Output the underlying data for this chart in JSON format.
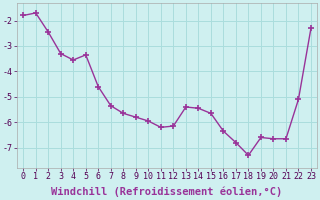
{
  "x": [
    0,
    1,
    2,
    3,
    4,
    5,
    6,
    7,
    8,
    9,
    10,
    11,
    12,
    13,
    14,
    15,
    16,
    17,
    18,
    19,
    20,
    21,
    22,
    23
  ],
  "y": [
    -1.8,
    -1.7,
    -2.45,
    -3.3,
    -3.55,
    -3.35,
    -4.6,
    -5.35,
    -5.65,
    -5.8,
    -5.95,
    -6.2,
    -6.15,
    -5.4,
    -5.45,
    -5.65,
    -6.35,
    -6.8,
    -7.3,
    -6.6,
    -6.65,
    -6.65,
    -5.1,
    -2.3
  ],
  "line_color": "#993399",
  "marker": "+",
  "marker_size": 5,
  "bg_color": "#cff0f0",
  "grid_color": "#aadddd",
  "xlabel": "Windchill (Refroidissement éolien,°C)",
  "ylabel": "",
  "ylim": [
    -7.8,
    -1.3
  ],
  "xlim": [
    -0.5,
    23.5
  ],
  "yticks": [
    -7,
    -6,
    -5,
    -4,
    -3,
    -2
  ],
  "xticks": [
    0,
    1,
    2,
    3,
    4,
    5,
    6,
    7,
    8,
    9,
    10,
    11,
    12,
    13,
    14,
    15,
    16,
    17,
    18,
    19,
    20,
    21,
    22,
    23
  ],
  "tick_fontsize": 6,
  "xlabel_fontsize": 7.5,
  "line_width": 1.0
}
